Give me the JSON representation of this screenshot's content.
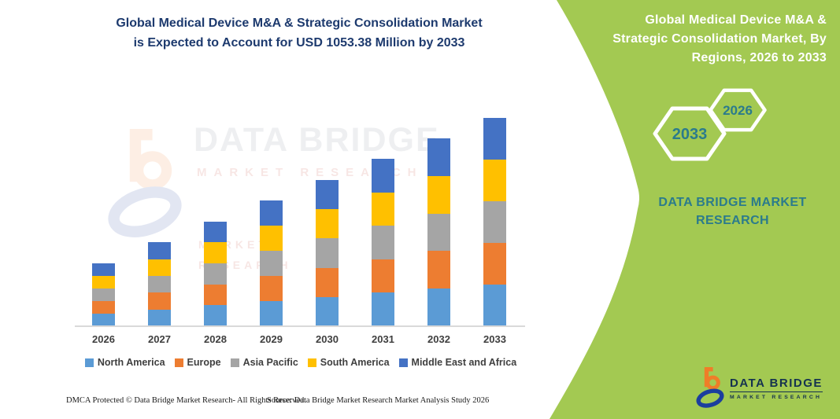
{
  "colors": {
    "panel_green": "#a3c952",
    "teal": "#2b7b8c",
    "title_navy": "#1d3a6e",
    "axis_text": "#3f3f3f",
    "logo_navy": "#15324f",
    "logo_orange": "#ef7d28",
    "logo_blue": "#1c3e9e",
    "baseline_gray": "#d9d9d9"
  },
  "header": {
    "title_line1": "Global Medical Device M&A & Strategic Consolidation Market",
    "title_line2": "is Expected to Account for USD 1053.38 Million by 2033"
  },
  "side_panel": {
    "title_line1": "Global Medical Device M&A &",
    "title_line2": "Strategic Consolidation Market, By",
    "title_line3": "Regions, 2026 to 2033",
    "hexagon_back_year": "2026",
    "hexagon_front_year": "2033",
    "brand_line1": "DATA BRIDGE MARKET",
    "brand_line2": "RESEARCH"
  },
  "watermark": {
    "brand": "DATA BRIDGE",
    "sub": "MARKET RESEARCH",
    "sub2_line1": "MARKET",
    "sub2_line2": "RESEARCH"
  },
  "logo": {
    "brand": "DATA BRIDGE",
    "sub": "MARKET RESEARCH"
  },
  "footer": {
    "left": "DMCA Protected © Data Bridge Market Research-  All Rights Reserved.",
    "right": "Source: Data Bridge Market Research  Market Analysis Study 2026"
  },
  "chart_data": {
    "type": "bar",
    "stacked": true,
    "title": "Global Medical Device M&A & Strategic Consolidation Market, By Regions, 2026 to 2033",
    "unit": "USD Million",
    "categories": [
      "2026",
      "2027",
      "2028",
      "2029",
      "2030",
      "2031",
      "2032",
      "2033"
    ],
    "series": [
      {
        "name": "North America",
        "color": "#5B9BD5",
        "values": [
          64,
          85,
          106,
          127,
          148,
          169,
          190,
          210.7
        ]
      },
      {
        "name": "Europe",
        "color": "#ED7D31",
        "values": [
          64,
          85,
          106,
          127,
          148,
          169,
          190,
          210.7
        ]
      },
      {
        "name": "Asia Pacific",
        "color": "#A5A5A5",
        "values": [
          64,
          85,
          106,
          127,
          148,
          169,
          190,
          210.7
        ]
      },
      {
        "name": "South America",
        "color": "#FFC000",
        "values": [
          64,
          85,
          106,
          127,
          148,
          169,
          190,
          210.6
        ]
      },
      {
        "name": "Middle East and Africa",
        "color": "#4472C4",
        "values": [
          64,
          85,
          106,
          127,
          148,
          169,
          190,
          210.68
        ]
      }
    ],
    "totals": [
      320,
      425,
      530,
      635,
      740,
      845,
      950,
      1053.38
    ],
    "ylim": [
      0,
      1053.38
    ],
    "grid": false,
    "legend_position": "bottom",
    "xlabel": "",
    "ylabel": ""
  }
}
